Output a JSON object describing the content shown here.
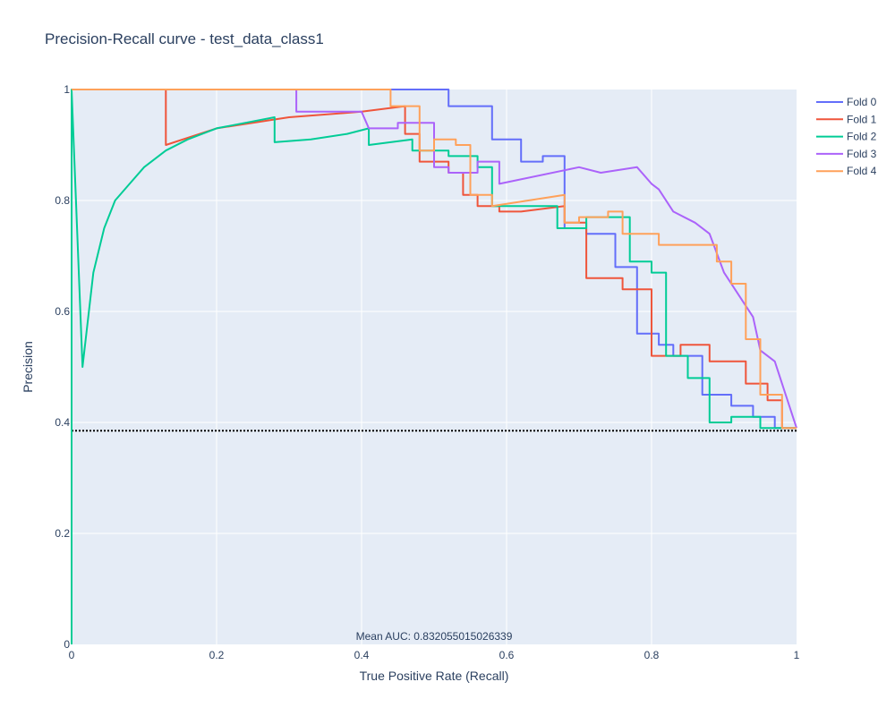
{
  "chart_data": {
    "type": "line",
    "title": "Precision-Recall curve - test_data_class1",
    "xlabel": "True Positive Rate (Recall)",
    "ylabel": "Precision",
    "xlim": [
      0,
      1
    ],
    "ylim": [
      0,
      1
    ],
    "x_ticks": [
      "0",
      "0.2",
      "0.4",
      "0.6",
      "0.8",
      "1"
    ],
    "y_ticks": [
      "0",
      "0.2",
      "0.4",
      "0.6",
      "0.8",
      "1"
    ],
    "grid": true,
    "legend_position": "top-right",
    "annotation": "Mean AUC: 0.832055015026339",
    "baseline": {
      "y": 0.385,
      "style": "dotted",
      "color": "#000000"
    },
    "series": [
      {
        "name": "Fold 0",
        "color": "#636efa",
        "x": [
          0.0,
          0.52,
          0.52,
          0.58,
          0.58,
          0.62,
          0.62,
          0.65,
          0.65,
          0.68,
          0.68,
          0.71,
          0.71,
          0.75,
          0.75,
          0.78,
          0.78,
          0.81,
          0.81,
          0.83,
          0.83,
          0.87,
          0.87,
          0.91,
          0.91,
          0.94,
          0.94,
          0.97,
          0.97,
          1.0
        ],
        "y": [
          1.0,
          1.0,
          0.97,
          0.97,
          0.91,
          0.91,
          0.87,
          0.87,
          0.88,
          0.88,
          0.75,
          0.75,
          0.74,
          0.74,
          0.68,
          0.68,
          0.56,
          0.56,
          0.54,
          0.54,
          0.52,
          0.52,
          0.45,
          0.45,
          0.43,
          0.43,
          0.41,
          0.41,
          0.39,
          0.39
        ]
      },
      {
        "name": "Fold 1",
        "color": "#ef553b",
        "x": [
          0.0,
          0.13,
          0.13,
          0.2,
          0.3,
          0.4,
          0.46,
          0.46,
          0.48,
          0.48,
          0.52,
          0.52,
          0.54,
          0.54,
          0.56,
          0.56,
          0.59,
          0.59,
          0.62,
          0.68,
          0.68,
          0.71,
          0.71,
          0.76,
          0.76,
          0.8,
          0.8,
          0.84,
          0.84,
          0.88,
          0.88,
          0.93,
          0.93,
          0.96,
          0.96,
          0.98,
          0.98,
          1.0
        ],
        "y": [
          1.0,
          1.0,
          0.9,
          0.93,
          0.95,
          0.96,
          0.97,
          0.92,
          0.92,
          0.87,
          0.87,
          0.85,
          0.85,
          0.81,
          0.81,
          0.79,
          0.79,
          0.78,
          0.78,
          0.79,
          0.76,
          0.76,
          0.66,
          0.66,
          0.64,
          0.64,
          0.52,
          0.52,
          0.54,
          0.54,
          0.51,
          0.51,
          0.47,
          0.47,
          0.44,
          0.44,
          0.39,
          0.39
        ]
      },
      {
        "name": "Fold 2",
        "color": "#00cc96",
        "x": [
          0.0,
          0.0,
          0.015,
          0.03,
          0.045,
          0.06,
          0.08,
          0.1,
          0.13,
          0.16,
          0.2,
          0.24,
          0.28,
          0.28,
          0.33,
          0.38,
          0.41,
          0.41,
          0.47,
          0.47,
          0.52,
          0.52,
          0.56,
          0.56,
          0.58,
          0.58,
          0.67,
          0.67,
          0.71,
          0.71,
          0.77,
          0.77,
          0.8,
          0.8,
          0.82,
          0.82,
          0.85,
          0.85,
          0.88,
          0.88,
          0.91,
          0.91,
          0.95,
          0.95,
          1.0
        ],
        "y": [
          0.0,
          1.0,
          0.5,
          0.67,
          0.75,
          0.8,
          0.83,
          0.86,
          0.89,
          0.91,
          0.93,
          0.94,
          0.95,
          0.905,
          0.91,
          0.92,
          0.93,
          0.9,
          0.91,
          0.89,
          0.89,
          0.88,
          0.88,
          0.86,
          0.86,
          0.79,
          0.79,
          0.75,
          0.75,
          0.77,
          0.77,
          0.69,
          0.69,
          0.67,
          0.67,
          0.52,
          0.52,
          0.48,
          0.48,
          0.4,
          0.4,
          0.41,
          0.41,
          0.39,
          0.39
        ]
      },
      {
        "name": "Fold 3",
        "color": "#ab63fa",
        "x": [
          0.0,
          0.31,
          0.31,
          0.4,
          0.41,
          0.45,
          0.45,
          0.5,
          0.5,
          0.52,
          0.52,
          0.56,
          0.56,
          0.59,
          0.59,
          0.7,
          0.7,
          0.73,
          0.73,
          0.78,
          0.78,
          0.8,
          0.8,
          0.81,
          0.81,
          0.83,
          0.83,
          0.86,
          0.86,
          0.88,
          0.88,
          0.9,
          0.9,
          0.94,
          0.94,
          0.95,
          0.95,
          0.97,
          0.97,
          1.0
        ],
        "y": [
          1.0,
          1.0,
          0.96,
          0.96,
          0.93,
          0.93,
          0.94,
          0.94,
          0.86,
          0.86,
          0.85,
          0.85,
          0.87,
          0.87,
          0.83,
          0.86,
          0.86,
          0.85,
          0.85,
          0.86,
          0.86,
          0.83,
          0.83,
          0.82,
          0.82,
          0.78,
          0.78,
          0.76,
          0.76,
          0.74,
          0.74,
          0.67,
          0.67,
          0.59,
          0.59,
          0.53,
          0.53,
          0.51,
          0.51,
          0.39
        ]
      },
      {
        "name": "Fold 4",
        "color": "#ffa15a",
        "x": [
          0.0,
          0.44,
          0.44,
          0.48,
          0.48,
          0.5,
          0.5,
          0.53,
          0.53,
          0.55,
          0.55,
          0.58,
          0.58,
          0.68,
          0.68,
          0.7,
          0.7,
          0.74,
          0.74,
          0.76,
          0.76,
          0.78,
          0.78,
          0.81,
          0.81,
          0.85,
          0.85,
          0.89,
          0.89,
          0.91,
          0.91,
          0.93,
          0.93,
          0.95,
          0.95,
          0.98,
          0.98,
          1.0
        ],
        "y": [
          1.0,
          1.0,
          0.97,
          0.97,
          0.89,
          0.89,
          0.91,
          0.91,
          0.9,
          0.9,
          0.81,
          0.81,
          0.79,
          0.81,
          0.76,
          0.76,
          0.77,
          0.77,
          0.78,
          0.78,
          0.74,
          0.74,
          0.74,
          0.74,
          0.72,
          0.72,
          0.72,
          0.72,
          0.69,
          0.69,
          0.65,
          0.65,
          0.55,
          0.55,
          0.45,
          0.45,
          0.39,
          0.39
        ]
      }
    ]
  }
}
